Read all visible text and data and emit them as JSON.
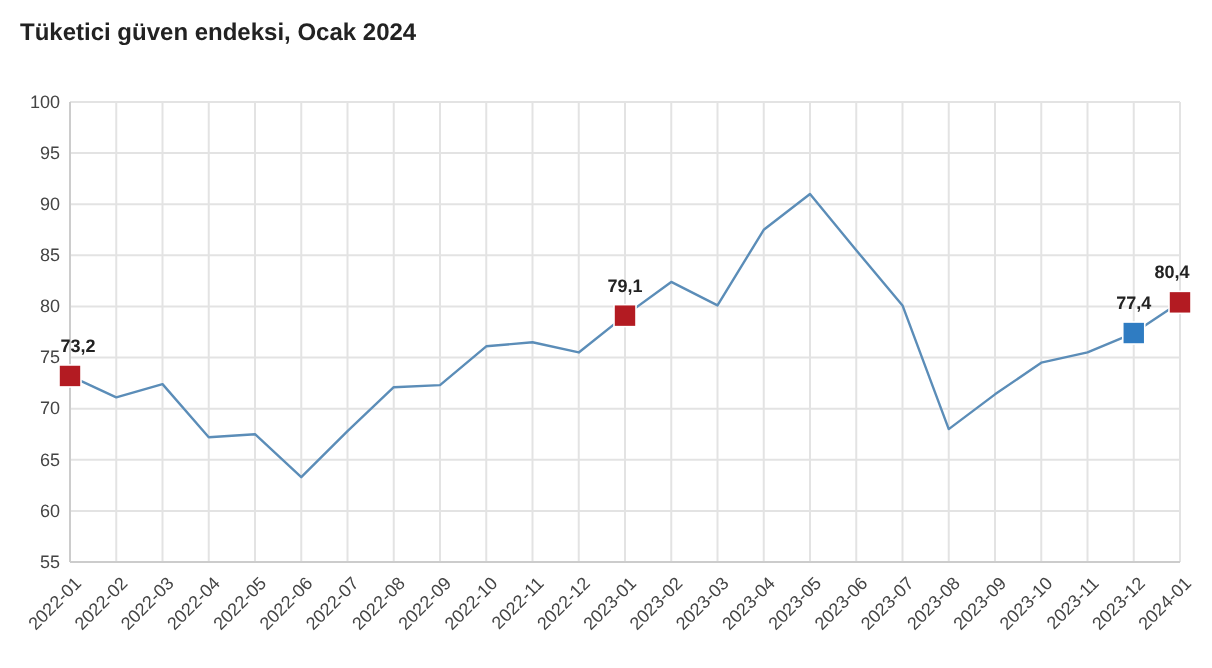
{
  "chart_data": {
    "type": "line",
    "title": "Tüketici güven endeksi, Ocak 2024",
    "categories": [
      "2022-01",
      "2022-02",
      "2022-03",
      "2022-04",
      "2022-05",
      "2022-06",
      "2022-07",
      "2022-08",
      "2022-09",
      "2022-10",
      "2022-11",
      "2022-12",
      "2023-01",
      "2023-02",
      "2023-03",
      "2023-04",
      "2023-05",
      "2023-06",
      "2023-07",
      "2023-08",
      "2023-09",
      "2023-10",
      "2023-11",
      "2023-12",
      "2024-01"
    ],
    "series": [
      {
        "color": "#5b8db8",
        "marker": "none",
        "values": [
          73.2,
          71.1,
          72.4,
          67.2,
          67.5,
          63.3,
          67.8,
          72.1,
          72.3,
          76.1,
          76.5,
          75.5,
          79.1,
          82.4,
          80.1,
          87.5,
          91.0,
          85.5,
          80.1,
          68.0,
          71.4,
          74.5,
          75.5,
          77.4,
          80.4
        ]
      },
      {
        "type": "scatter",
        "marker": "square",
        "values": [
          73.2,
          null,
          null,
          null,
          null,
          null,
          null,
          null,
          null,
          null,
          null,
          null,
          79.1,
          null,
          null,
          null,
          null,
          null,
          null,
          null,
          null,
          null,
          null,
          77.4,
          80.4
        ],
        "colors": [
          "#b31b22",
          null,
          null,
          null,
          null,
          null,
          null,
          null,
          null,
          null,
          null,
          null,
          "#b31b22",
          null,
          null,
          null,
          null,
          null,
          null,
          null,
          null,
          null,
          null,
          "#2f7cc2",
          "#b31b22"
        ],
        "value_labels": [
          "73,2",
          null,
          null,
          null,
          null,
          null,
          null,
          null,
          null,
          null,
          null,
          null,
          "79,1",
          null,
          null,
          null,
          null,
          null,
          null,
          null,
          null,
          null,
          null,
          "77,4",
          "80,4"
        ]
      }
    ],
    "ylim": [
      55,
      100
    ],
    "yticks": [
      55,
      60,
      65,
      70,
      75,
      80,
      85,
      90,
      95,
      100
    ],
    "grid": true
  }
}
